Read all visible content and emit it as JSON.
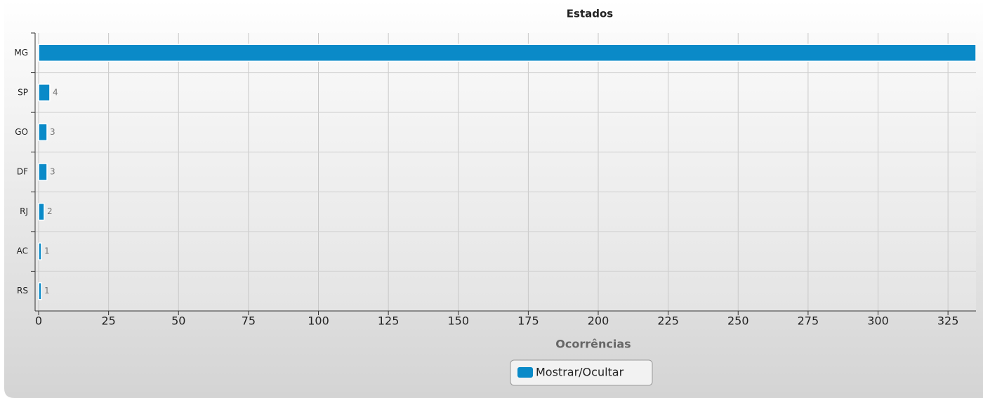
{
  "chart_data": {
    "type": "bar",
    "orientation": "horizontal",
    "title": "Estados",
    "xlabel": "Ocorrências",
    "categories": [
      "MG",
      "SP",
      "GO",
      "DF",
      "RJ",
      "AC",
      "RS"
    ],
    "series": [
      {
        "name": "Mostrar/Ocultar",
        "color": "#0a8ac8",
        "values": [
          335,
          4,
          3,
          3,
          2,
          1,
          1
        ]
      }
    ],
    "xlim": [
      0,
      335
    ],
    "xticks": [
      0,
      25,
      50,
      75,
      100,
      125,
      150,
      175,
      200,
      225,
      250,
      275,
      300,
      325
    ],
    "grid": true,
    "legend": "bottom"
  }
}
